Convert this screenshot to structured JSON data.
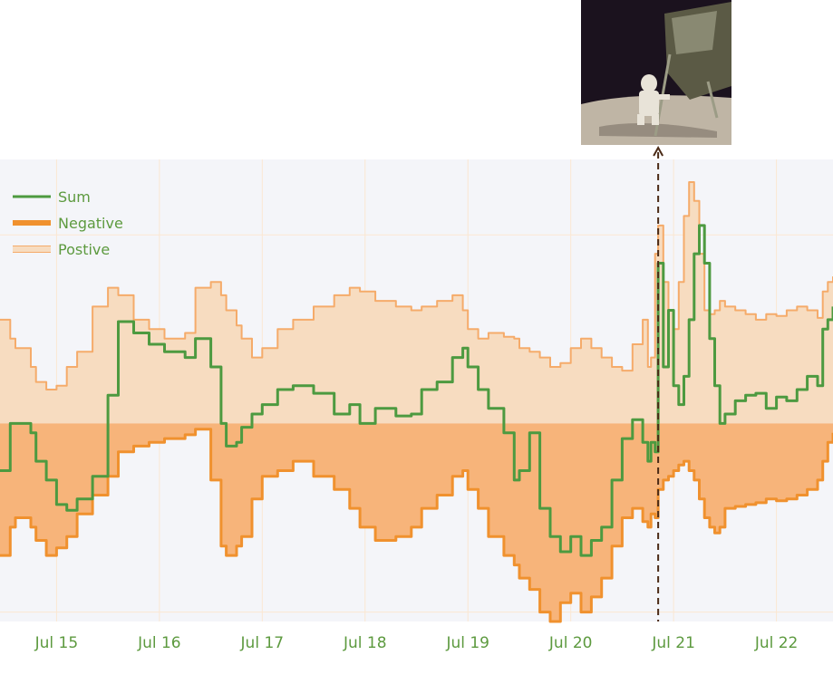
{
  "chart_data": {
    "type": "area",
    "colors": {
      "plot_bg": "#f4f5f9",
      "grid": "#fbe7d2",
      "sum": "#4d9a40",
      "negative_line": "#f0912e",
      "negative_fill": "#f7b47a",
      "positive_line": "#f5ab6a",
      "positive_fill": "#f7dcc0",
      "tick_text": "#5d9a3f",
      "legend_text": "#5d9a3f",
      "annotation_line": "#4a2a16"
    },
    "x_ticks": [
      "Jul 15",
      "Jul 16",
      "Jul 17",
      "Jul 18",
      "Jul 19",
      "Jul 20",
      "Jul 21",
      "Jul 22"
    ],
    "x_range": [
      14.45,
      22.55
    ],
    "y_range": [
      -1.05,
      1.4
    ],
    "grid": true,
    "legend_position": "top-left",
    "series": [
      {
        "name": "Sum",
        "key": "sum",
        "x": [
          14.45,
          14.55,
          14.6,
          14.75,
          14.8,
          14.9,
          15.0,
          15.1,
          15.2,
          15.35,
          15.5,
          15.6,
          15.75,
          15.9,
          16.05,
          16.25,
          16.35,
          16.5,
          16.6,
          16.65,
          16.75,
          16.8,
          16.9,
          17.0,
          17.15,
          17.3,
          17.5,
          17.7,
          17.85,
          17.95,
          18.1,
          18.3,
          18.45,
          18.55,
          18.7,
          18.85,
          18.95,
          19.0,
          19.1,
          19.2,
          19.35,
          19.45,
          19.5,
          19.6,
          19.7,
          19.8,
          19.9,
          20.0,
          20.1,
          20.2,
          20.3,
          20.4,
          20.5,
          20.6,
          20.7,
          20.75,
          20.78,
          20.82,
          20.85,
          20.9,
          20.95,
          21.0,
          21.05,
          21.1,
          21.15,
          21.2,
          21.25,
          21.3,
          21.35,
          21.4,
          21.45,
          21.5,
          21.6,
          21.7,
          21.8,
          21.9,
          22.0,
          22.1,
          22.2,
          22.3,
          22.4,
          22.45,
          22.5,
          22.55
        ],
        "y": [
          -0.25,
          0.0,
          0.0,
          -0.05,
          -0.2,
          -0.3,
          -0.43,
          -0.46,
          -0.4,
          -0.28,
          0.15,
          0.54,
          0.48,
          0.42,
          0.38,
          0.35,
          0.45,
          0.3,
          0.0,
          -0.12,
          -0.1,
          -0.02,
          0.05,
          0.1,
          0.18,
          0.2,
          0.16,
          0.05,
          0.1,
          0.0,
          0.08,
          0.04,
          0.05,
          0.18,
          0.22,
          0.35,
          0.4,
          0.3,
          0.18,
          0.08,
          -0.05,
          -0.3,
          -0.25,
          -0.05,
          -0.45,
          -0.6,
          -0.68,
          -0.6,
          -0.7,
          -0.62,
          -0.55,
          -0.3,
          -0.08,
          0.02,
          -0.1,
          -0.2,
          -0.1,
          -0.15,
          0.85,
          0.3,
          0.6,
          0.2,
          0.1,
          0.25,
          0.55,
          0.9,
          1.05,
          0.85,
          0.45,
          0.2,
          0.0,
          0.05,
          0.12,
          0.15,
          0.16,
          0.08,
          0.14,
          0.12,
          0.18,
          0.25,
          0.2,
          0.5,
          0.55,
          0.62
        ]
      },
      {
        "name": "Negative",
        "key": "negative",
        "x": [
          14.45,
          14.55,
          14.6,
          14.75,
          14.8,
          14.9,
          15.0,
          15.1,
          15.2,
          15.35,
          15.5,
          15.6,
          15.75,
          15.9,
          16.05,
          16.25,
          16.35,
          16.5,
          16.6,
          16.65,
          16.75,
          16.8,
          16.9,
          17.0,
          17.15,
          17.3,
          17.5,
          17.7,
          17.85,
          17.95,
          18.1,
          18.3,
          18.45,
          18.55,
          18.7,
          18.85,
          18.95,
          19.0,
          19.1,
          19.2,
          19.35,
          19.45,
          19.5,
          19.6,
          19.7,
          19.8,
          19.9,
          20.0,
          20.1,
          20.2,
          20.3,
          20.4,
          20.5,
          20.6,
          20.7,
          20.75,
          20.78,
          20.82,
          20.85,
          20.9,
          20.95,
          21.0,
          21.05,
          21.1,
          21.15,
          21.2,
          21.25,
          21.3,
          21.35,
          21.4,
          21.45,
          21.5,
          21.6,
          21.7,
          21.8,
          21.9,
          22.0,
          22.1,
          22.2,
          22.3,
          22.4,
          22.45,
          22.5,
          22.55
        ],
        "y": [
          -0.7,
          -0.55,
          -0.5,
          -0.55,
          -0.62,
          -0.7,
          -0.66,
          -0.6,
          -0.48,
          -0.38,
          -0.28,
          -0.15,
          -0.12,
          -0.1,
          -0.08,
          -0.06,
          -0.03,
          -0.3,
          -0.65,
          -0.7,
          -0.65,
          -0.6,
          -0.4,
          -0.28,
          -0.25,
          -0.2,
          -0.28,
          -0.35,
          -0.45,
          -0.55,
          -0.62,
          -0.6,
          -0.55,
          -0.45,
          -0.38,
          -0.28,
          -0.25,
          -0.35,
          -0.45,
          -0.6,
          -0.7,
          -0.75,
          -0.82,
          -0.88,
          -1.0,
          -1.05,
          -0.95,
          -0.9,
          -1.0,
          -0.92,
          -0.82,
          -0.65,
          -0.5,
          -0.45,
          -0.52,
          -0.55,
          -0.48,
          -0.5,
          -0.35,
          -0.3,
          -0.28,
          -0.25,
          -0.22,
          -0.2,
          -0.25,
          -0.3,
          -0.4,
          -0.5,
          -0.55,
          -0.58,
          -0.55,
          -0.45,
          -0.44,
          -0.43,
          -0.42,
          -0.4,
          -0.41,
          -0.4,
          -0.38,
          -0.35,
          -0.3,
          -0.2,
          -0.1,
          -0.05
        ]
      },
      {
        "name": "Postive",
        "key": "positive",
        "x": [
          14.45,
          14.55,
          14.6,
          14.75,
          14.8,
          14.9,
          15.0,
          15.1,
          15.2,
          15.35,
          15.5,
          15.6,
          15.75,
          15.9,
          16.05,
          16.25,
          16.35,
          16.5,
          16.6,
          16.65,
          16.75,
          16.8,
          16.9,
          17.0,
          17.15,
          17.3,
          17.5,
          17.7,
          17.85,
          17.95,
          18.1,
          18.3,
          18.45,
          18.55,
          18.7,
          18.85,
          18.95,
          19.0,
          19.1,
          19.2,
          19.35,
          19.45,
          19.5,
          19.6,
          19.7,
          19.8,
          19.9,
          20.0,
          20.1,
          20.2,
          20.3,
          20.4,
          20.5,
          20.6,
          20.7,
          20.75,
          20.78,
          20.82,
          20.85,
          20.9,
          20.95,
          21.0,
          21.05,
          21.1,
          21.15,
          21.2,
          21.25,
          21.3,
          21.35,
          21.4,
          21.45,
          21.5,
          21.6,
          21.7,
          21.8,
          21.9,
          22.0,
          22.1,
          22.2,
          22.3,
          22.4,
          22.45,
          22.5,
          22.55
        ],
        "y": [
          0.55,
          0.45,
          0.4,
          0.3,
          0.22,
          0.18,
          0.2,
          0.3,
          0.38,
          0.62,
          0.72,
          0.68,
          0.55,
          0.5,
          0.45,
          0.48,
          0.72,
          0.75,
          0.68,
          0.6,
          0.52,
          0.45,
          0.35,
          0.4,
          0.5,
          0.55,
          0.62,
          0.68,
          0.72,
          0.7,
          0.65,
          0.62,
          0.6,
          0.62,
          0.65,
          0.68,
          0.6,
          0.5,
          0.45,
          0.48,
          0.46,
          0.45,
          0.4,
          0.38,
          0.35,
          0.3,
          0.32,
          0.4,
          0.45,
          0.4,
          0.35,
          0.3,
          0.28,
          0.42,
          0.55,
          0.3,
          0.35,
          0.9,
          1.05,
          0.75,
          0.6,
          0.5,
          0.75,
          1.1,
          1.28,
          1.18,
          0.9,
          0.6,
          0.58,
          0.6,
          0.65,
          0.62,
          0.6,
          0.58,
          0.55,
          0.58,
          0.57,
          0.6,
          0.62,
          0.6,
          0.56,
          0.7,
          0.75,
          0.78
        ]
      }
    ]
  },
  "annotation": {
    "x": 20.85,
    "image_name": "moon-landing-photo",
    "image_colors": {
      "sky": "#1b121e",
      "ground": "#bfb5a5",
      "ground_dark": "#6e6359",
      "module": "#5b5a45",
      "module_highlight": "#9c9c86",
      "astronaut": "#e8e3d8"
    }
  }
}
